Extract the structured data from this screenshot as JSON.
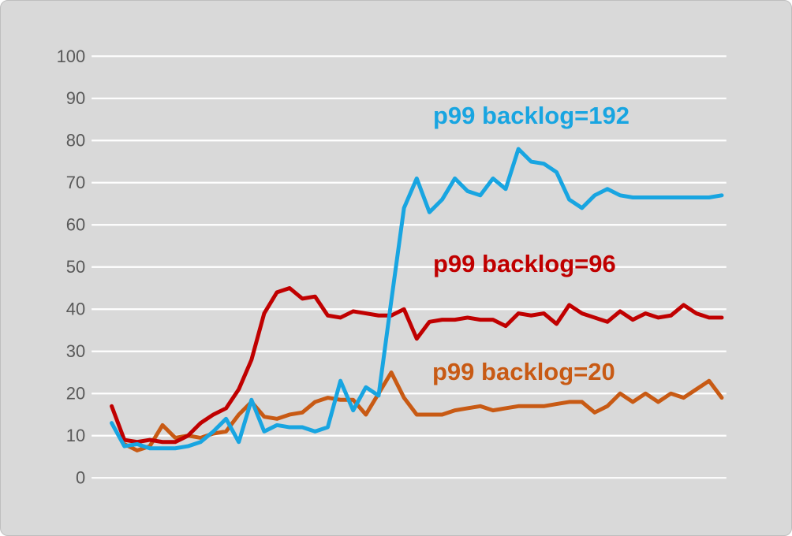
{
  "chart_data": {
    "type": "line",
    "title": "",
    "xlabel": "",
    "ylabel": "",
    "ylim": [
      0,
      100
    ],
    "yticks": [
      0,
      10,
      20,
      30,
      40,
      50,
      60,
      70,
      80,
      90,
      100
    ],
    "grid": "horizontal white gridlines on light gray background",
    "legend_position": "inline colored text annotations beside each line",
    "background_color": "#d9d9d9",
    "gridline_color": "#ffffff",
    "tick_label_color": "#595959",
    "series": [
      {
        "label": "p99 backlog=20",
        "color": "#c85a14",
        "values": [
          null,
          8,
          6.5,
          7.5,
          12.5,
          9.5,
          10,
          9.5,
          10.5,
          11,
          15,
          18,
          14.5,
          14,
          15,
          15.5,
          18,
          19,
          18.5,
          18.5,
          15,
          20,
          25,
          19,
          15,
          15,
          15,
          16,
          16.5,
          17,
          16,
          16.5,
          17,
          17,
          17,
          17.5,
          18,
          18,
          15.5,
          17,
          20,
          18,
          20,
          18,
          20,
          19,
          21,
          23,
          19
        ]
      },
      {
        "label": "p99 backlog=96",
        "color": "#c00000",
        "values": [
          17,
          9,
          8.5,
          9,
          8.5,
          8.5,
          10,
          13,
          15,
          16.5,
          21,
          28,
          39,
          44,
          45,
          42.5,
          43,
          38.5,
          38,
          39.5,
          39,
          38.5,
          38.5,
          40,
          33,
          37,
          37.5,
          37.5,
          38,
          37.5,
          37.5,
          36,
          39,
          38.5,
          39,
          36.5,
          41,
          39,
          38,
          37,
          39.5,
          37.5,
          39,
          38,
          38.5,
          41,
          39,
          38,
          38
        ]
      },
      {
        "label": "p99 backlog=192",
        "color": "#18a5e1",
        "values": [
          13,
          7.5,
          8,
          7,
          7,
          7,
          7.5,
          8.5,
          11,
          14,
          8.5,
          18.5,
          11,
          12.5,
          12,
          12,
          11,
          12,
          23,
          16,
          21.5,
          19.5,
          42,
          64,
          71,
          63,
          66,
          71,
          68,
          67,
          71,
          68.5,
          78,
          75,
          74.5,
          72.5,
          66,
          64,
          67,
          68.5,
          67,
          66.5,
          66.5,
          66.5,
          66.5,
          66.5,
          66.5,
          66.5,
          67
        ]
      }
    ]
  }
}
